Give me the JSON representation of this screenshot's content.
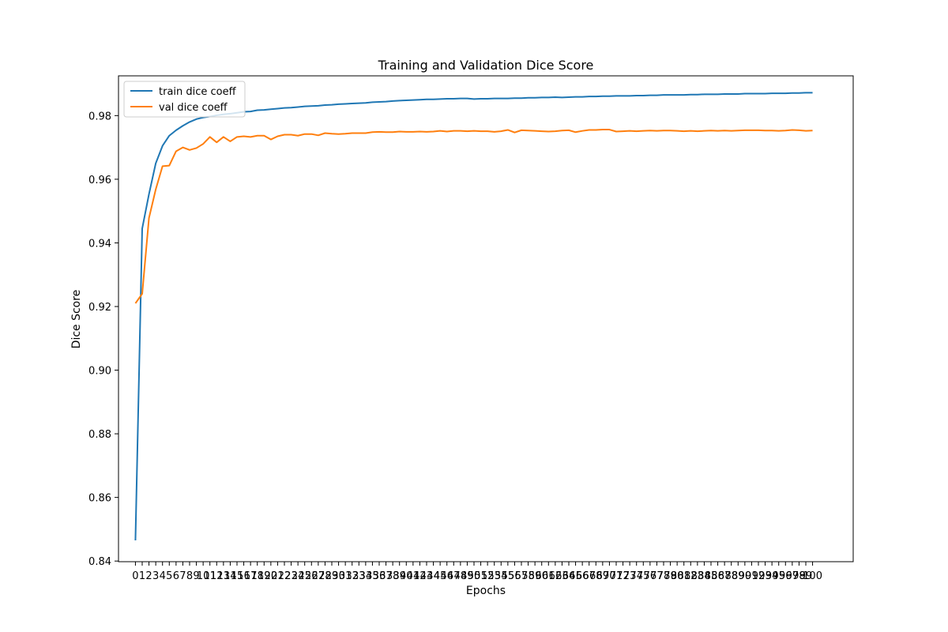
{
  "chart_data": {
    "type": "line",
    "title": "Training and Validation Dice Score",
    "xlabel": "Epochs",
    "ylabel": "Dice Score",
    "xlim": [
      -2.5,
      106
    ],
    "ylim": [
      0.8398,
      0.9925
    ],
    "x_ticks": [
      0,
      1,
      2,
      3,
      4,
      5,
      6,
      7,
      8,
      9,
      10,
      11,
      12,
      13,
      14,
      15,
      16,
      17,
      18,
      19,
      20,
      21,
      22,
      23,
      24,
      25,
      26,
      27,
      28,
      29,
      30,
      31,
      32,
      33,
      34,
      35,
      36,
      37,
      38,
      39,
      40,
      41,
      42,
      43,
      44,
      45,
      46,
      47,
      48,
      49,
      50,
      51,
      52,
      53,
      54,
      55,
      56,
      57,
      58,
      59,
      60,
      61,
      62,
      63,
      64,
      65,
      66,
      67,
      68,
      69,
      70,
      71,
      72,
      73,
      74,
      75,
      76,
      77,
      78,
      79,
      80,
      81,
      82,
      83,
      84,
      85,
      86,
      87,
      88,
      89,
      90,
      91,
      92,
      93,
      94,
      95,
      96,
      97,
      98,
      99,
      100
    ],
    "y_ticks": [
      "0.84",
      "0.86",
      "0.88",
      "0.90",
      "0.92",
      "0.94",
      "0.96",
      "0.98"
    ],
    "grid": false,
    "legend_position": "top-left",
    "series": [
      {
        "name": "train dice coeff",
        "color": "#1f77b4",
        "values": [
          0.8465,
          0.9445,
          0.9553,
          0.965,
          0.9705,
          0.9737,
          0.9754,
          0.9768,
          0.978,
          0.9789,
          0.9794,
          0.9797,
          0.9801,
          0.9804,
          0.9806,
          0.9809,
          0.9812,
          0.9813,
          0.9817,
          0.9818,
          0.982,
          0.9822,
          0.9824,
          0.9825,
          0.9827,
          0.9829,
          0.983,
          0.9831,
          0.9833,
          0.9834,
          0.9836,
          0.9837,
          0.9838,
          0.9839,
          0.984,
          0.9842,
          0.9843,
          0.9844,
          0.9846,
          0.9847,
          0.9848,
          0.9849,
          0.985,
          0.9851,
          0.9851,
          0.9852,
          0.9853,
          0.9853,
          0.9854,
          0.9854,
          0.9852,
          0.9853,
          0.9853,
          0.9854,
          0.9854,
          0.9854,
          0.9855,
          0.9855,
          0.9856,
          0.9856,
          0.9857,
          0.9857,
          0.9858,
          0.9857,
          0.9858,
          0.9859,
          0.9859,
          0.986,
          0.986,
          0.9861,
          0.9861,
          0.9862,
          0.9862,
          0.9862,
          0.9863,
          0.9863,
          0.9864,
          0.9864,
          0.9865,
          0.9865,
          0.9865,
          0.9865,
          0.9866,
          0.9866,
          0.9867,
          0.9867,
          0.9867,
          0.9868,
          0.9868,
          0.9868,
          0.9869,
          0.9869,
          0.9869,
          0.9869,
          0.987,
          0.987,
          0.987,
          0.9871,
          0.9871,
          0.9872,
          0.9872
        ]
      },
      {
        "name": "val dice coeff",
        "color": "#ff7f0e",
        "values": [
          0.921,
          0.924,
          0.9478,
          0.9568,
          0.9641,
          0.9643,
          0.9688,
          0.97,
          0.9692,
          0.9698,
          0.9711,
          0.9733,
          0.9716,
          0.9733,
          0.9719,
          0.9733,
          0.9735,
          0.9733,
          0.9737,
          0.9737,
          0.9725,
          0.9735,
          0.974,
          0.974,
          0.9737,
          0.9742,
          0.9742,
          0.9738,
          0.9745,
          0.9743,
          0.9742,
          0.9743,
          0.9745,
          0.9745,
          0.9745,
          0.9748,
          0.9749,
          0.9748,
          0.9748,
          0.975,
          0.9749,
          0.9749,
          0.975,
          0.9749,
          0.975,
          0.9752,
          0.975,
          0.9752,
          0.9752,
          0.9751,
          0.9752,
          0.9751,
          0.9751,
          0.9749,
          0.9751,
          0.9755,
          0.9747,
          0.9754,
          0.9753,
          0.9752,
          0.9751,
          0.975,
          0.9751,
          0.9753,
          0.9754,
          0.9748,
          0.9752,
          0.9755,
          0.9755,
          0.9756,
          0.9756,
          0.975,
          0.9751,
          0.9752,
          0.9751,
          0.9752,
          0.9753,
          0.9752,
          0.9753,
          0.9753,
          0.9752,
          0.9751,
          0.9752,
          0.9751,
          0.9752,
          0.9753,
          0.9752,
          0.9753,
          0.9752,
          0.9753,
          0.9754,
          0.9754,
          0.9754,
          0.9753,
          0.9753,
          0.9752,
          0.9753,
          0.9755,
          0.9754,
          0.9752,
          0.9753
        ]
      }
    ]
  }
}
